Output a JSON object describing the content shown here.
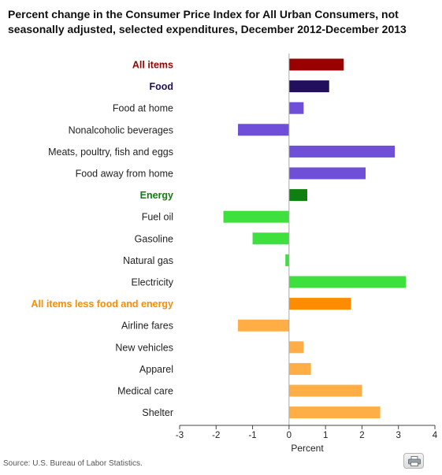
{
  "title": "Percent change in the Consumer Price Index for All Urban Consumers, not seasonally adjusted, selected expenditures, December 2012-December 2013",
  "source": "Source: U.S. Bureau of Labor Statistics.",
  "print_icon": "printer-icon",
  "chart_data": {
    "type": "bar",
    "orientation": "horizontal",
    "title": "Percent change in the Consumer Price Index for All Urban Consumers, not seasonally adjusted, selected expenditures, December 2012-December 2013",
    "xlabel": "Percent",
    "ylabel": "",
    "xlim": [
      -3,
      4
    ],
    "xticks": [
      "-3",
      "-2",
      "-1",
      "0",
      "1",
      "2",
      "3",
      "4"
    ],
    "grid": false,
    "categories": [
      "All items",
      "Food",
      "Food at home",
      "Nonalcoholic beverages",
      "Meats, poultry, fish and eggs",
      "Food away from home",
      "Energy",
      "Fuel oil",
      "Gasoline",
      "Natural gas",
      "Electricity",
      "All items less food and energy",
      "Airline fares",
      "New vehicles",
      "Apparel",
      "Medical care",
      "Shelter"
    ],
    "values": [
      1.5,
      1.1,
      0.4,
      -1.4,
      2.9,
      2.1,
      0.5,
      -1.8,
      -1.0,
      -0.1,
      3.2,
      1.7,
      -1.4,
      0.4,
      0.6,
      2.0,
      2.5
    ],
    "bar_colors": [
      "#990000",
      "#22105f",
      "#6f4fd8",
      "#6f4fd8",
      "#6f4fd8",
      "#6f4fd8",
      "#0f7f0f",
      "#3de03d",
      "#3de03d",
      "#3de03d",
      "#3de03d",
      "#ff8c00",
      "#ffad45",
      "#ffad45",
      "#ffad45",
      "#ffad45",
      "#ffad45"
    ],
    "label_colors": [
      "#990000",
      "#22105f",
      "#222222",
      "#222222",
      "#222222",
      "#222222",
      "#0f7f0f",
      "#222222",
      "#222222",
      "#222222",
      "#222222",
      "#ff8c00",
      "#222222",
      "#222222",
      "#222222",
      "#222222",
      "#222222"
    ],
    "label_bold": [
      true,
      true,
      false,
      false,
      false,
      false,
      true,
      false,
      false,
      false,
      false,
      true,
      false,
      false,
      false,
      false,
      false
    ]
  }
}
